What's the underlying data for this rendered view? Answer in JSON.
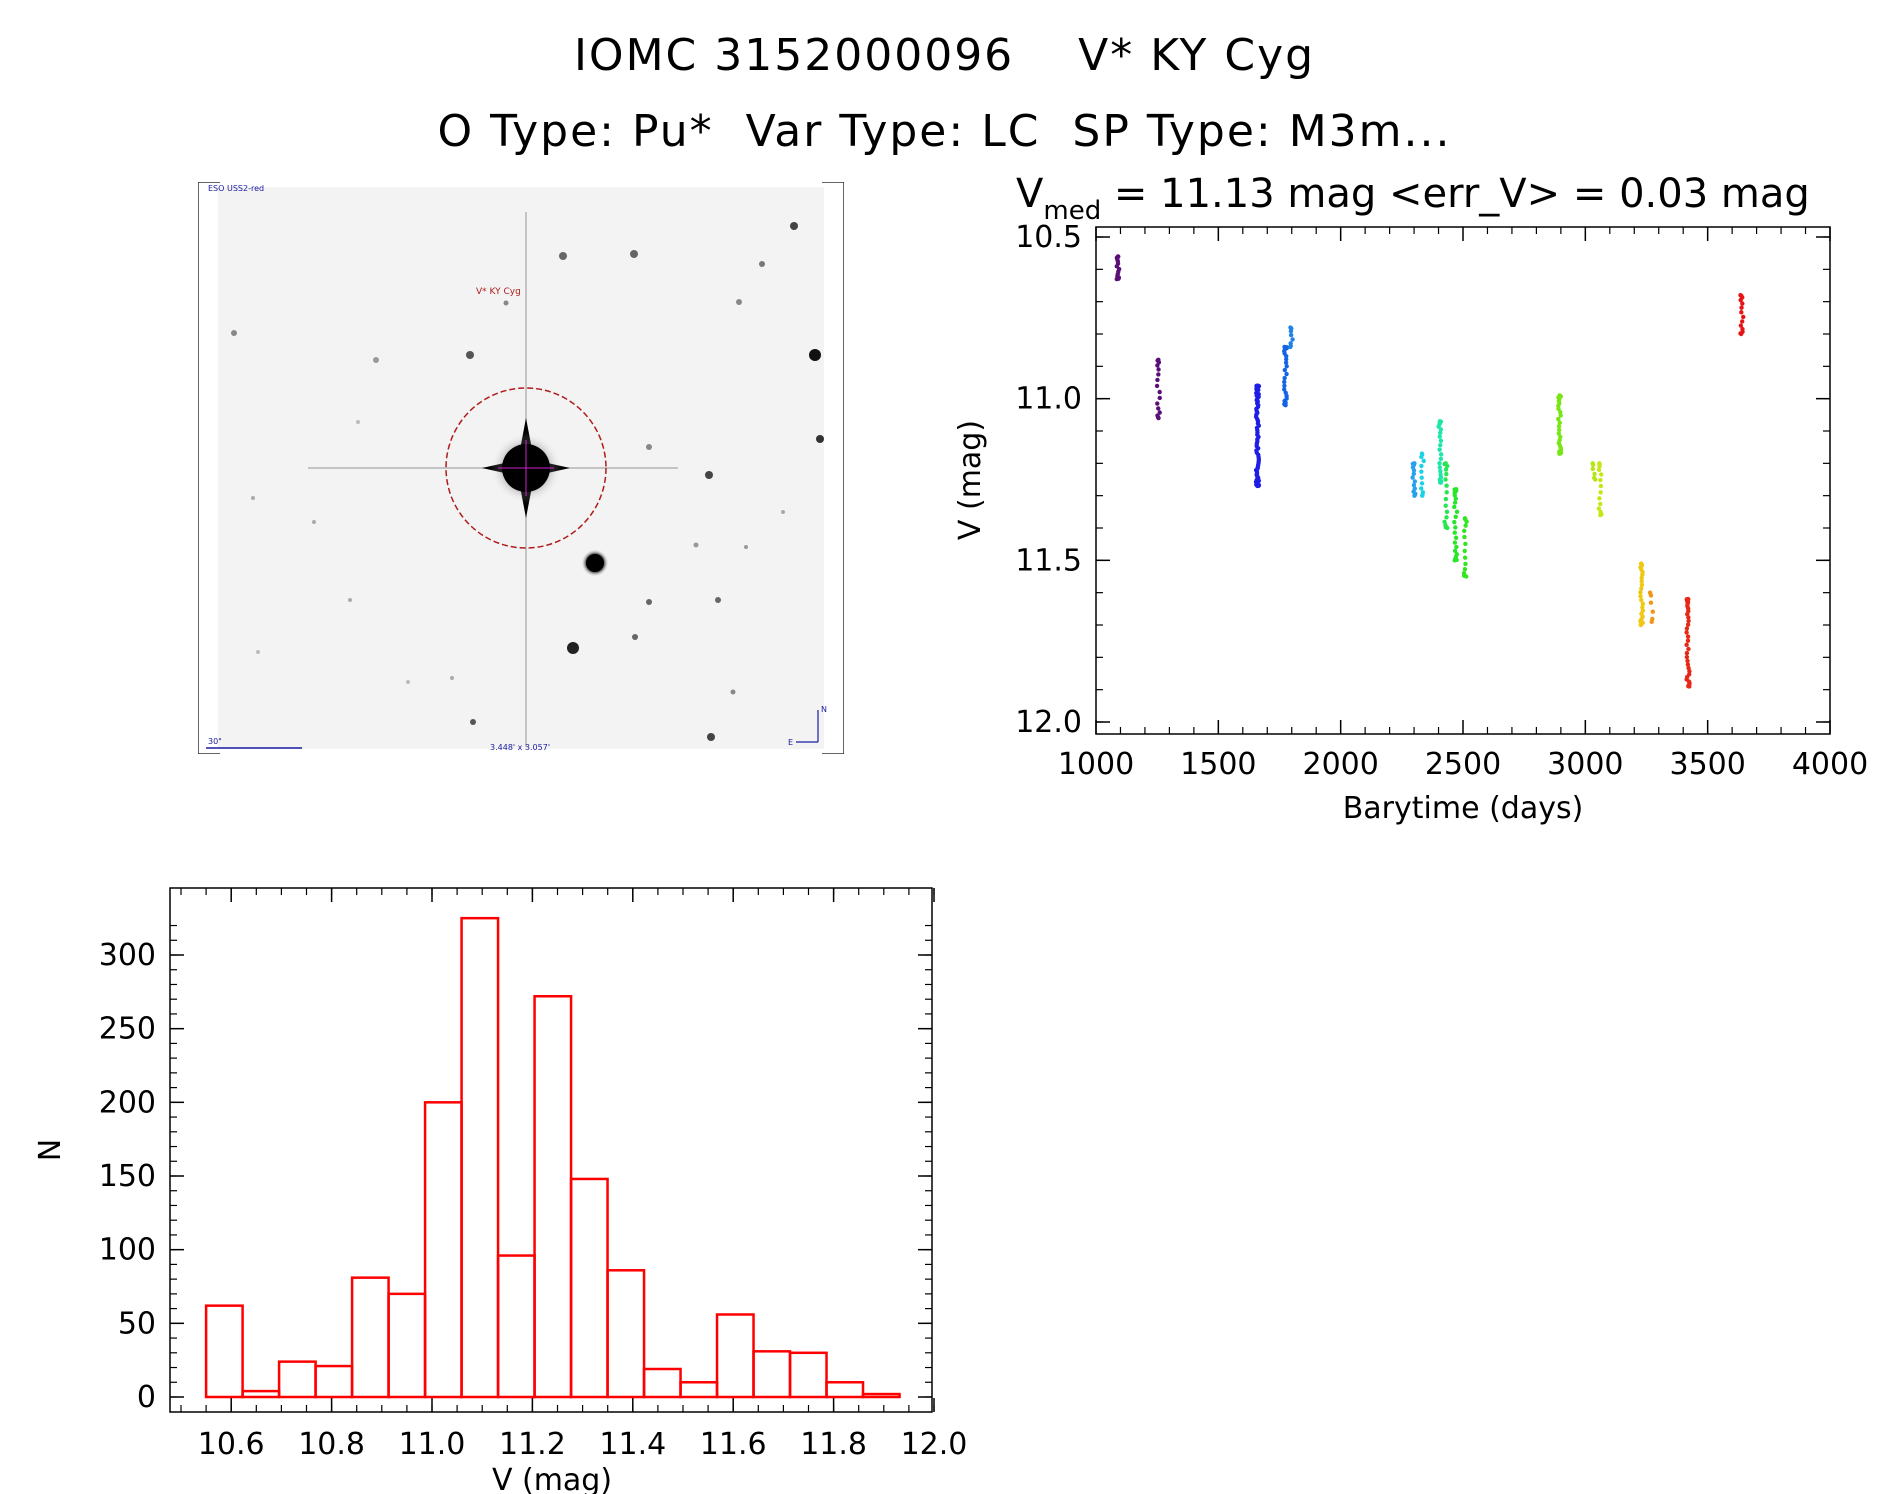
{
  "header": {
    "title_line1": "IOMC 3152000096    V* KY Cyg",
    "title_line2": "O Type: Pu*  Var Type: LC  SP Type: M3m..."
  },
  "sky_image": {
    "survey_label": "ESO USS2-red",
    "target_label": "V* KY Cyg",
    "scale_label": "30\"",
    "fov_label": "3.448' x 3.057'",
    "compass_north": "N",
    "compass_east": "E"
  },
  "chart_data": [
    {
      "type": "scatter",
      "title_main": "V",
      "title_sub": "med",
      "title_rest": " = 11.13 mag <err_V> = 0.03 mag",
      "xlabel": "Barytime (days)",
      "ylabel": "V (mag)",
      "xlim": [
        1000,
        4000
      ],
      "ylim": [
        10.5,
        12.0
      ],
      "y_inverted": true,
      "xticks": [
        "1000",
        "1500",
        "2000",
        "2500",
        "3000",
        "3500",
        "4000"
      ],
      "yticks": [
        "10.5",
        "11.0",
        "11.5",
        "12.0"
      ],
      "color_mapping": "time (purple to red)",
      "groups": [
        {
          "x": 1090,
          "ymin": 10.56,
          "ymax": 10.63,
          "n": 14,
          "color": "#5a0f78"
        },
        {
          "x": 1255,
          "ymin": 10.88,
          "ymax": 11.06,
          "n": 16,
          "color": "#5a0f78"
        },
        {
          "x": 1660,
          "ymin": 10.96,
          "ymax": 11.27,
          "n": 70,
          "color": "#1e1ee6"
        },
        {
          "x": 1775,
          "ymin": 10.84,
          "ymax": 11.02,
          "n": 24,
          "color": "#1464e6"
        },
        {
          "x": 1800,
          "ymin": 10.78,
          "ymax": 10.84,
          "n": 8,
          "color": "#1e82e6"
        },
        {
          "x": 2300,
          "ymin": 11.2,
          "ymax": 11.3,
          "n": 14,
          "color": "#28a0f0"
        },
        {
          "x": 2335,
          "ymin": 11.17,
          "ymax": 11.3,
          "n": 12,
          "color": "#1ed2e6"
        },
        {
          "x": 2405,
          "ymin": 11.07,
          "ymax": 11.26,
          "n": 22,
          "color": "#1ee6aa"
        },
        {
          "x": 2430,
          "ymin": 11.2,
          "ymax": 11.4,
          "n": 16,
          "color": "#28e650"
        },
        {
          "x": 2470,
          "ymin": 11.28,
          "ymax": 11.5,
          "n": 22,
          "color": "#28e628"
        },
        {
          "x": 2510,
          "ymin": 11.37,
          "ymax": 11.55,
          "n": 14,
          "color": "#32e61e"
        },
        {
          "x": 2895,
          "ymin": 10.99,
          "ymax": 11.17,
          "n": 26,
          "color": "#78e614"
        },
        {
          "x": 3035,
          "ymin": 11.2,
          "ymax": 11.25,
          "n": 6,
          "color": "#b4e614"
        },
        {
          "x": 3060,
          "ymin": 11.2,
          "ymax": 11.36,
          "n": 14,
          "color": "#c8e614"
        },
        {
          "x": 3230,
          "ymin": 11.51,
          "ymax": 11.7,
          "n": 26,
          "color": "#f0c814"
        },
        {
          "x": 3270,
          "ymin": 11.6,
          "ymax": 11.69,
          "n": 6,
          "color": "#f09614"
        },
        {
          "x": 3420,
          "ymin": 11.62,
          "ymax": 11.89,
          "n": 34,
          "color": "#e62814"
        },
        {
          "x": 3640,
          "ymin": 10.68,
          "ymax": 10.8,
          "n": 14,
          "color": "#e61414"
        }
      ]
    },
    {
      "type": "bar",
      "subtype": "histogram",
      "xlabel": "V (mag)",
      "ylabel": "N",
      "xlim": [
        10.5,
        12.0
      ],
      "ylim": [
        0,
        320
      ],
      "xticks": [
        "10.6",
        "10.8",
        "11.0",
        "11.2",
        "11.4",
        "11.6",
        "11.8",
        "12.0"
      ],
      "yticks": [
        "0",
        "50",
        "100",
        "150",
        "200",
        "250",
        "300"
      ],
      "bin_width": 0.0727,
      "bin_start": 10.55,
      "values": [
        62,
        4,
        24,
        21,
        81,
        70,
        200,
        325,
        96,
        272,
        148,
        86,
        19,
        10,
        56,
        31,
        30,
        10,
        2
      ],
      "color": "#ff0000"
    }
  ]
}
